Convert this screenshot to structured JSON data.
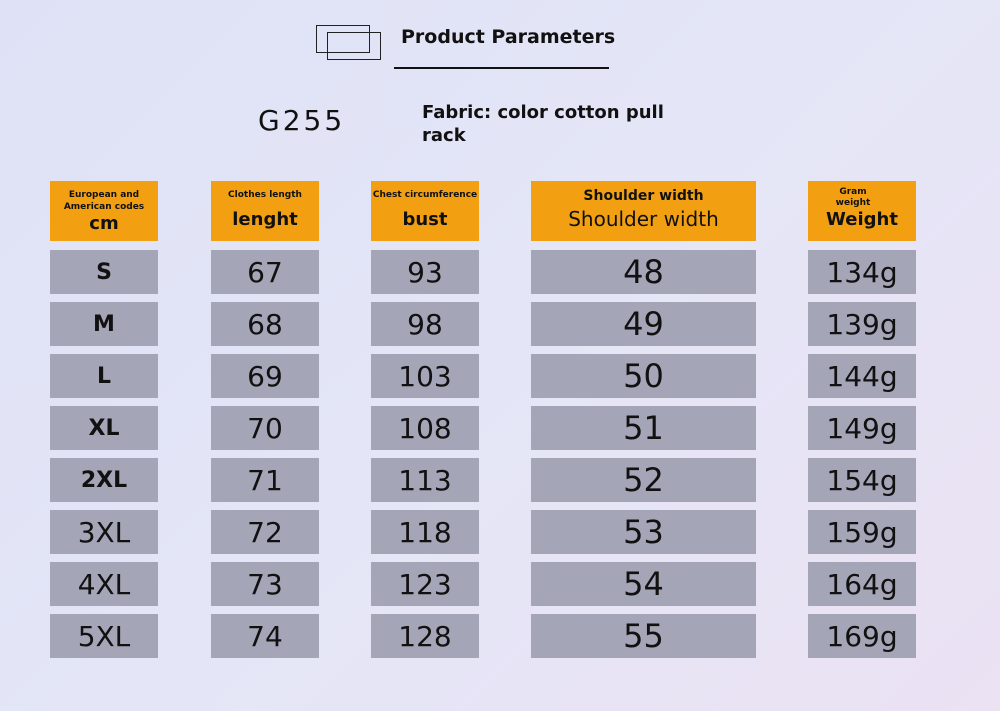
{
  "header": {
    "title": "Product Parameters",
    "logo_icon": "overlapping-rectangles-icon"
  },
  "product": {
    "model": "G255",
    "fabric": "Fabric: color cotton pull rack"
  },
  "colors": {
    "header_bg": "#f2a012",
    "cell_bg": "#a4a6b8"
  },
  "columns": [
    {
      "sub": "European and American codes",
      "main": "cm"
    },
    {
      "sub": "Clothes length",
      "main": "lenght"
    },
    {
      "sub": "Chest circumference",
      "main": "bust"
    },
    {
      "sub": "Shoulder width",
      "main": "Shoulder width"
    },
    {
      "sub": "Gram weight",
      "main": "Weight"
    }
  ],
  "rows": [
    [
      "S",
      "67",
      "93",
      "48",
      "134g"
    ],
    [
      "M",
      "68",
      "98",
      "49",
      "139g"
    ],
    [
      "L",
      "69",
      "103",
      "50",
      "144g"
    ],
    [
      "XL",
      "70",
      "108",
      "51",
      "149g"
    ],
    [
      "2XL",
      "71",
      "113",
      "52",
      "154g"
    ],
    [
      "3XL",
      "72",
      "118",
      "53",
      "159g"
    ],
    [
      "4XL",
      "73",
      "123",
      "54",
      "164g"
    ],
    [
      "5XL",
      "74",
      "128",
      "55",
      "169g"
    ]
  ]
}
